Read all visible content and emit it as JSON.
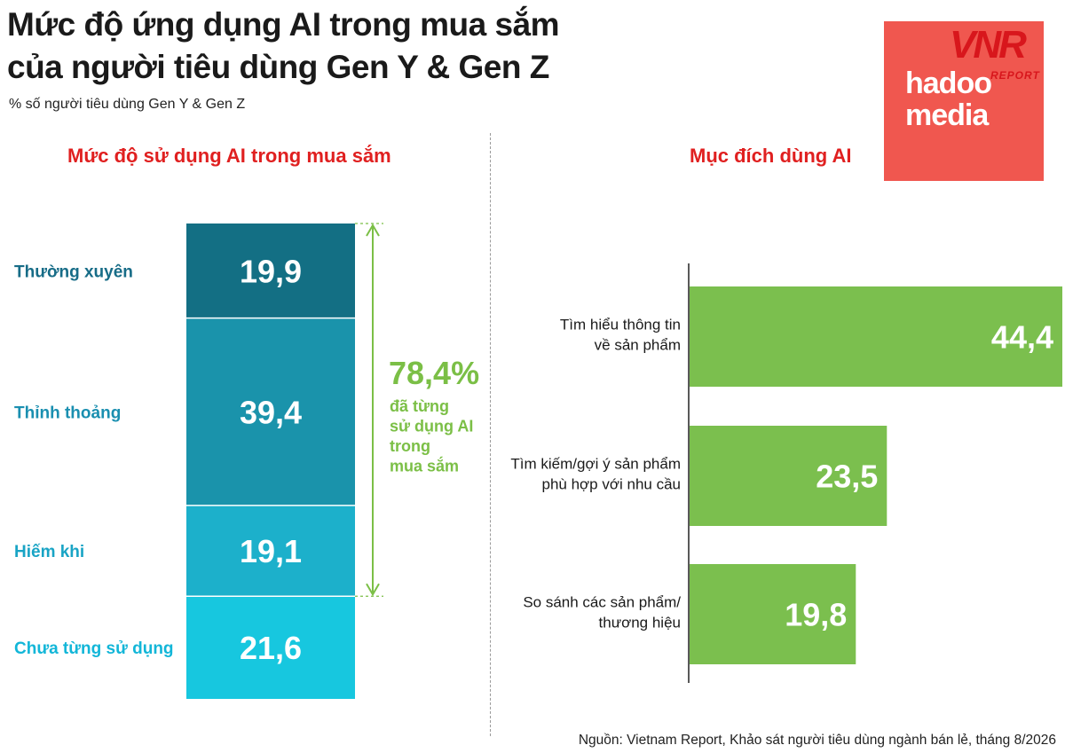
{
  "title_line1": "Mức độ ứng dụng AI trong mua sắm",
  "title_line2": "của người tiêu dùng Gen Y & Gen Z",
  "subtitle": "% số người tiêu dùng Gen Y & Gen Z",
  "logo": {
    "brand": "VNR",
    "brand_sub": "REPORT",
    "text_line1": "hadoo",
    "text_line2": "media"
  },
  "source": "Nguồn: Vietnam Report, Khảo sát người tiêu dùng ngành bán lẻ, tháng 8/2026",
  "chart_data": [
    {
      "type": "bar",
      "stacked": true,
      "title": "Mức độ sử dụng AI trong mua sắm",
      "categories": [
        "Thường xuyên",
        "Thỉnh thoảng",
        "Hiếm khi",
        "Chưa từng sử dụng"
      ],
      "values": [
        19.9,
        39.4,
        19.1,
        21.6
      ],
      "value_labels": [
        "19,9",
        "39,4",
        "19,1",
        "21,6"
      ],
      "colors": [
        "#136f84",
        "#1a93ab",
        "#1cb0cb",
        "#17c7df"
      ],
      "label_colors": [
        "#176c87",
        "#1a8fb0",
        "#19a4c5",
        "#12b6d8"
      ],
      "annotation": {
        "value": "78,4%",
        "lines": [
          "đã từng",
          "sử dụng AI",
          "trong",
          "mua sắm"
        ],
        "color": "#7bbf46"
      }
    },
    {
      "type": "bar",
      "orientation": "horizontal",
      "title": "Mục đích dùng AI",
      "categories": [
        [
          "Tìm hiểu thông tin",
          "về sản phẩm"
        ],
        [
          "Tìm kiếm/gợi ý sản phẩm",
          "phù hợp với nhu cầu"
        ],
        [
          "So sánh các sản phẩm/",
          "thương hiệu"
        ]
      ],
      "values": [
        44.4,
        23.5,
        19.8
      ],
      "value_labels": [
        "44,4",
        "23,5",
        "19,8"
      ],
      "color": "#7bbf4e",
      "xlim": [
        0,
        44.4
      ]
    }
  ]
}
